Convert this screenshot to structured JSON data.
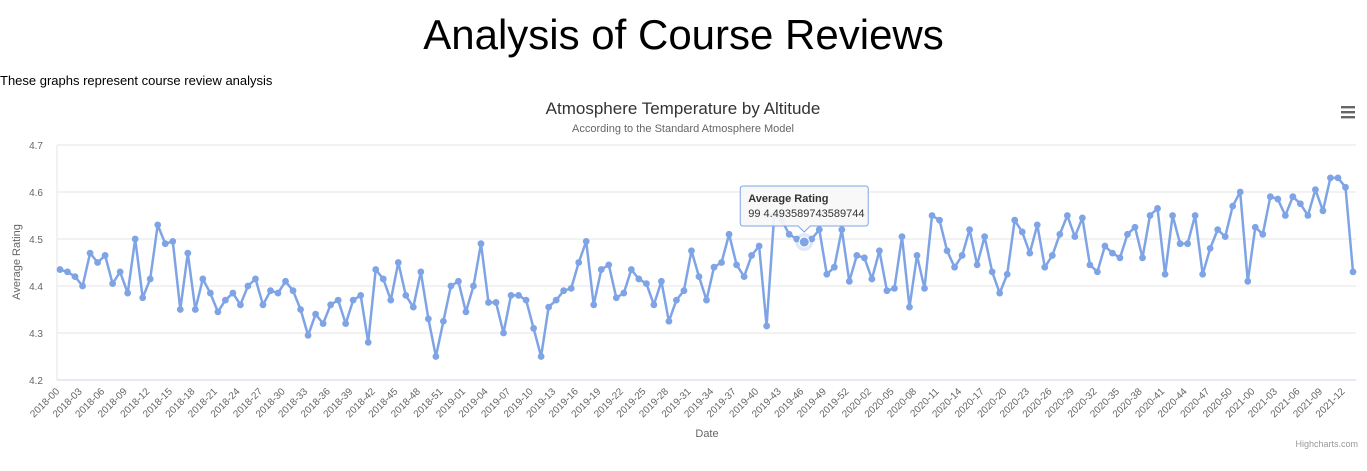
{
  "page": {
    "title": "Analysis of Course Reviews",
    "subtitle": "These graphs represent course review analysis"
  },
  "chart_menu_icon": "hamburger-menu-icon",
  "credits": "Highcharts.com",
  "tooltip": {
    "title": "Average Rating",
    "text": "99 4.493589743589744",
    "index": 99
  },
  "colors": {
    "series": "#7fa4e6",
    "grid": "#e6e6e6",
    "axis_text": "#666666"
  },
  "chart_data": {
    "type": "line",
    "title": "Atmosphere Temperature by Altitude",
    "subtitle": "According to the Standard Atmosphere Model",
    "xlabel": "Date",
    "ylabel": "Average Rating",
    "ylim": [
      4.2,
      4.7
    ],
    "yticks": [
      "4.2",
      "4.3",
      "4.4",
      "4.5",
      "4.6",
      "4.7"
    ],
    "grid": true,
    "legend": "none",
    "x_tick_labels": [
      "2018-00",
      "2018-03",
      "2018-06",
      "2018-09",
      "2018-12",
      "2018-15",
      "2018-18",
      "2018-21",
      "2018-24",
      "2018-27",
      "2018-30",
      "2018-33",
      "2018-36",
      "2018-39",
      "2018-42",
      "2018-45",
      "2018-48",
      "2018-51",
      "2019-01",
      "2019-04",
      "2019-07",
      "2019-10",
      "2019-13",
      "2019-16",
      "2019-19",
      "2019-22",
      "2019-25",
      "2019-28",
      "2019-31",
      "2019-34",
      "2019-37",
      "2019-40",
      "2019-43",
      "2019-46",
      "2019-49",
      "2019-52",
      "2020-02",
      "2020-05",
      "2020-08",
      "2020-11",
      "2020-14",
      "2020-17",
      "2020-20",
      "2020-23",
      "2020-26",
      "2020-29",
      "2020-32",
      "2020-35",
      "2020-38",
      "2020-41",
      "2020-44",
      "2020-47",
      "2020-50",
      "2021-00",
      "2021-03",
      "2021-06",
      "2021-09",
      "2021-12"
    ],
    "series": [
      {
        "name": "Average Rating",
        "values": [
          4.435,
          4.43,
          4.42,
          4.4,
          4.47,
          4.45,
          4.465,
          4.405,
          4.43,
          4.385,
          4.5,
          4.375,
          4.415,
          4.53,
          4.49,
          4.495,
          4.35,
          4.47,
          4.35,
          4.415,
          4.385,
          4.345,
          4.37,
          4.385,
          4.36,
          4.4,
          4.415,
          4.36,
          4.39,
          4.385,
          4.41,
          4.39,
          4.35,
          4.295,
          4.34,
          4.32,
          4.36,
          4.37,
          4.32,
          4.37,
          4.38,
          4.28,
          4.435,
          4.415,
          4.37,
          4.45,
          4.38,
          4.355,
          4.43,
          4.33,
          4.25,
          4.325,
          4.4,
          4.41,
          4.345,
          4.4,
          4.49,
          4.365,
          4.365,
          4.3,
          4.38,
          4.38,
          4.37,
          4.31,
          4.25,
          4.355,
          4.37,
          4.39,
          4.395,
          4.45,
          4.495,
          4.36,
          4.435,
          4.445,
          4.375,
          4.385,
          4.435,
          4.415,
          4.405,
          4.36,
          4.41,
          4.325,
          4.37,
          4.39,
          4.475,
          4.42,
          4.37,
          4.44,
          4.45,
          4.51,
          4.445,
          4.42,
          4.465,
          4.485,
          4.315,
          4.55,
          4.54,
          4.51,
          4.5,
          4.4936,
          4.5,
          4.52,
          4.425,
          4.44,
          4.52,
          4.41,
          4.465,
          4.46,
          4.415,
          4.475,
          4.39,
          4.395,
          4.505,
          4.355,
          4.465,
          4.395,
          4.55,
          4.54,
          4.475,
          4.44,
          4.465,
          4.52,
          4.445,
          4.505,
          4.43,
          4.385,
          4.425,
          4.54,
          4.515,
          4.47,
          4.53,
          4.44,
          4.465,
          4.51,
          4.55,
          4.505,
          4.545,
          4.445,
          4.43,
          4.485,
          4.47,
          4.46,
          4.51,
          4.525,
          4.46,
          4.55,
          4.565,
          4.425,
          4.55,
          4.49,
          4.49,
          4.55,
          4.425,
          4.48,
          4.52,
          4.505,
          4.57,
          4.6,
          4.41,
          4.525,
          4.51,
          4.59,
          4.585,
          4.55,
          4.59,
          4.575,
          4.55,
          4.605,
          4.56,
          4.63,
          4.63,
          4.61,
          4.43
        ]
      }
    ]
  }
}
